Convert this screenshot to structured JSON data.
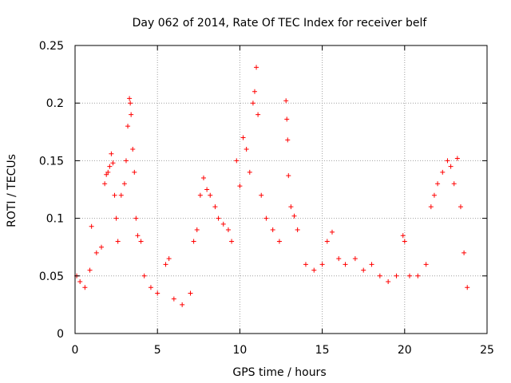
{
  "chart_data": {
    "type": "scatter",
    "title": "Day 062 of 2014, Rate Of TEC Index for receiver belf",
    "xlabel": "GPS time / hours",
    "ylabel": "ROTI / TECUs",
    "xlim": [
      0,
      25
    ],
    "ylim": [
      0,
      0.25
    ],
    "x_ticks": [
      0,
      5,
      10,
      15,
      20,
      25
    ],
    "x_tick_labels": [
      "0",
      "5",
      "10",
      "15",
      "20",
      "25"
    ],
    "y_ticks": [
      0,
      0.05,
      0.1,
      0.15,
      0.2,
      0.25
    ],
    "y_tick_labels": [
      "0",
      "0.05",
      "0.1",
      "0.15",
      "0.2",
      "0.25"
    ],
    "grid": true,
    "marker": "+",
    "series": [
      {
        "name": "ROTI",
        "color": "#ff0000",
        "points": [
          [
            0.1,
            0.05
          ],
          [
            0.3,
            0.045
          ],
          [
            0.6,
            0.04
          ],
          [
            0.9,
            0.055
          ],
          [
            1.0,
            0.093
          ],
          [
            1.3,
            0.07
          ],
          [
            1.6,
            0.075
          ],
          [
            1.8,
            0.13
          ],
          [
            1.9,
            0.138
          ],
          [
            2.0,
            0.14
          ],
          [
            2.1,
            0.145
          ],
          [
            2.2,
            0.156
          ],
          [
            2.3,
            0.148
          ],
          [
            2.4,
            0.12
          ],
          [
            2.5,
            0.1
          ],
          [
            2.6,
            0.08
          ],
          [
            2.8,
            0.12
          ],
          [
            3.0,
            0.13
          ],
          [
            3.1,
            0.15
          ],
          [
            3.2,
            0.18
          ],
          [
            3.3,
            0.204
          ],
          [
            3.35,
            0.2
          ],
          [
            3.4,
            0.19
          ],
          [
            3.5,
            0.16
          ],
          [
            3.6,
            0.14
          ],
          [
            3.7,
            0.1
          ],
          [
            3.8,
            0.085
          ],
          [
            4.0,
            0.08
          ],
          [
            4.2,
            0.05
          ],
          [
            4.6,
            0.04
          ],
          [
            5.0,
            0.035
          ],
          [
            5.5,
            0.06
          ],
          [
            5.7,
            0.065
          ],
          [
            6.0,
            0.03
          ],
          [
            6.5,
            0.025
          ],
          [
            7.0,
            0.035
          ],
          [
            7.2,
            0.08
          ],
          [
            7.4,
            0.09
          ],
          [
            7.6,
            0.12
          ],
          [
            7.8,
            0.135
          ],
          [
            8.0,
            0.125
          ],
          [
            8.2,
            0.12
          ],
          [
            8.5,
            0.11
          ],
          [
            8.7,
            0.1
          ],
          [
            9.0,
            0.095
          ],
          [
            9.3,
            0.09
          ],
          [
            9.5,
            0.08
          ],
          [
            9.8,
            0.15
          ],
          [
            10.0,
            0.128
          ],
          [
            10.2,
            0.17
          ],
          [
            10.4,
            0.16
          ],
          [
            10.6,
            0.14
          ],
          [
            10.8,
            0.2
          ],
          [
            10.9,
            0.21
          ],
          [
            11.0,
            0.231
          ],
          [
            11.1,
            0.19
          ],
          [
            11.3,
            0.12
          ],
          [
            11.6,
            0.1
          ],
          [
            12.0,
            0.09
          ],
          [
            12.4,
            0.08
          ],
          [
            12.8,
            0.202
          ],
          [
            12.85,
            0.186
          ],
          [
            12.9,
            0.168
          ],
          [
            12.95,
            0.137
          ],
          [
            13.1,
            0.11
          ],
          [
            13.3,
            0.102
          ],
          [
            13.5,
            0.09
          ],
          [
            14.0,
            0.06
          ],
          [
            14.5,
            0.055
          ],
          [
            15.0,
            0.06
          ],
          [
            15.3,
            0.08
          ],
          [
            15.6,
            0.088
          ],
          [
            16.0,
            0.065
          ],
          [
            16.4,
            0.06
          ],
          [
            17.0,
            0.065
          ],
          [
            17.5,
            0.055
          ],
          [
            18.0,
            0.06
          ],
          [
            18.5,
            0.05
          ],
          [
            19.0,
            0.045
          ],
          [
            19.5,
            0.05
          ],
          [
            19.9,
            0.085
          ],
          [
            20.0,
            0.08
          ],
          [
            20.3,
            0.05
          ],
          [
            20.8,
            0.05
          ],
          [
            21.3,
            0.06
          ],
          [
            21.6,
            0.11
          ],
          [
            21.8,
            0.12
          ],
          [
            22.0,
            0.13
          ],
          [
            22.3,
            0.14
          ],
          [
            22.6,
            0.15
          ],
          [
            22.8,
            0.145
          ],
          [
            23.0,
            0.13
          ],
          [
            23.2,
            0.152
          ],
          [
            23.4,
            0.11
          ],
          [
            23.6,
            0.07
          ],
          [
            23.8,
            0.04
          ]
        ]
      }
    ]
  }
}
